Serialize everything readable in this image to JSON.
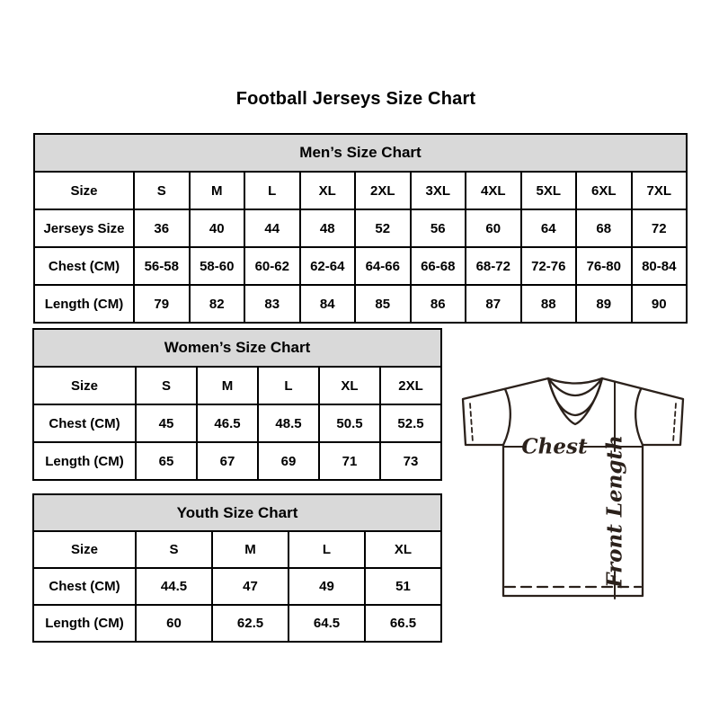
{
  "page": {
    "title": "Football Jerseys Size Chart"
  },
  "tables": {
    "men": {
      "title": "Men’s Size Chart",
      "label_col_width": 111,
      "rows": [
        {
          "label": "Size",
          "values": [
            "S",
            "M",
            "L",
            "XL",
            "2XL",
            "3XL",
            "4XL",
            "5XL",
            "6XL",
            "7XL"
          ]
        },
        {
          "label": "Jerseys Size",
          "values": [
            "36",
            "40",
            "44",
            "48",
            "52",
            "56",
            "60",
            "64",
            "68",
            "72"
          ]
        },
        {
          "label": "Chest (CM)",
          "values": [
            "56-58",
            "58-60",
            "60-62",
            "62-64",
            "64-66",
            "66-68",
            "68-72",
            "72-76",
            "76-80",
            "80-84"
          ]
        },
        {
          "label": "Length (CM)",
          "values": [
            "79",
            "82",
            "83",
            "84",
            "85",
            "86",
            "87",
            "88",
            "89",
            "90"
          ]
        }
      ]
    },
    "women": {
      "title": "Women’s Size Chart",
      "label_col_width": 114,
      "rows": [
        {
          "label": "Size",
          "values": [
            "S",
            "M",
            "L",
            "XL",
            "2XL"
          ]
        },
        {
          "label": "Chest (CM)",
          "values": [
            "45",
            "46.5",
            "48.5",
            "50.5",
            "52.5"
          ]
        },
        {
          "label": "Length (CM)",
          "values": [
            "65",
            "67",
            "69",
            "71",
            "73"
          ]
        }
      ]
    },
    "youth": {
      "title": "Youth Size Chart",
      "label_col_width": 114,
      "rows": [
        {
          "label": "Size",
          "values": [
            "S",
            "M",
            "L",
            "XL"
          ]
        },
        {
          "label": "Chest (CM)",
          "values": [
            "44.5",
            "47",
            "49",
            "51"
          ]
        },
        {
          "label": "Length (CM)",
          "values": [
            "60",
            "62.5",
            "64.5",
            "66.5"
          ]
        }
      ]
    }
  },
  "diagram": {
    "chest_label": "Chest",
    "front_length_label": "Front Length"
  },
  "colors": {
    "background": "#ffffff",
    "table_border": "#000000",
    "table_header_bg": "#d9d9d9",
    "text": "#000000",
    "diagram_stroke": "#2b211b"
  }
}
